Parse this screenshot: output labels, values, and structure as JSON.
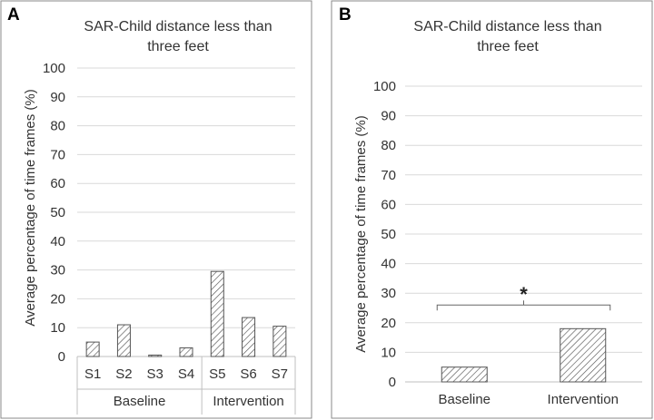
{
  "colors": {
    "bar_stroke": "#555555",
    "hatch": "#555555",
    "grid": "#d9d9d9",
    "axis": "#bfbfbf"
  },
  "chart_data": [
    {
      "panel": "A",
      "type": "bar",
      "title_lines": [
        "SAR-Child distance less than",
        "three feet"
      ],
      "ylabel": "Average percentage of time frames (%)",
      "ylim": [
        0,
        100
      ],
      "yticks": [
        0,
        10,
        20,
        30,
        40,
        50,
        60,
        70,
        80,
        90,
        100
      ],
      "grid": true,
      "categories": [
        "S1",
        "S2",
        "S3",
        "S4",
        "S5",
        "S6",
        "S7"
      ],
      "values": [
        5,
        11,
        0.5,
        3,
        29.5,
        13.5,
        10.5
      ],
      "groups": [
        {
          "label": "Baseline",
          "members": [
            "S1",
            "S2",
            "S3",
            "S4"
          ]
        },
        {
          "label": "Intervention",
          "members": [
            "S5",
            "S6",
            "S7"
          ]
        }
      ],
      "pattern": "diagonal-hatch"
    },
    {
      "panel": "B",
      "type": "bar",
      "title_lines": [
        "SAR-Child distance less than",
        "three feet"
      ],
      "ylabel": "Average percentage of time frames (%)",
      "ylim": [
        0,
        100
      ],
      "yticks": [
        0,
        10,
        20,
        30,
        40,
        50,
        60,
        70,
        80,
        90,
        100
      ],
      "grid": true,
      "categories": [
        "Baseline",
        "Intervention"
      ],
      "values": [
        5,
        18
      ],
      "pattern": "diagonal-hatch",
      "significance": {
        "between": [
          "Baseline",
          "Intervention"
        ],
        "at": 26,
        "label": "*"
      }
    }
  ]
}
